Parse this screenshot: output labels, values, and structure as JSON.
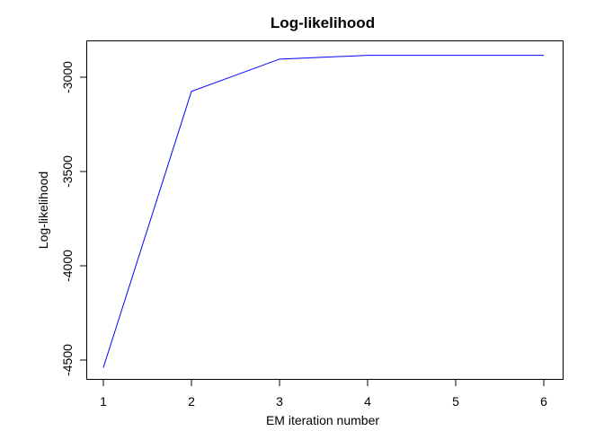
{
  "chart_data": {
    "type": "line",
    "title": "Log-likelihood",
    "xlabel": "EM iteration number",
    "ylabel": "Log-likelihood",
    "x": [
      1,
      2,
      3,
      4,
      5,
      6
    ],
    "values": [
      -4540,
      -3075,
      -2904,
      -2884,
      -2884,
      -2884
    ],
    "xticks": [
      "1",
      "2",
      "3",
      "4",
      "5",
      "6"
    ],
    "yticks": [
      "-3000",
      "-3500",
      "-4000",
      "-4500"
    ],
    "xlim": [
      0.8,
      6.2
    ],
    "ylim": [
      -4598,
      -2822
    ],
    "line_color": "#0000ff",
    "grid": false
  }
}
